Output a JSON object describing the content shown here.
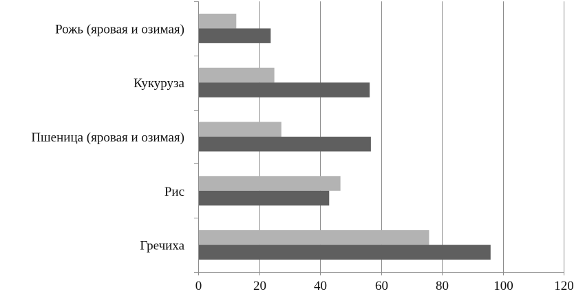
{
  "chart_data": {
    "type": "bar",
    "orientation": "horizontal",
    "categories": [
      "Рожь (яровая и озимая)",
      "Кукуруза",
      "Пшеница (яровая и озимая)",
      "Рис",
      "Гречиха"
    ],
    "series": [
      {
        "values": [
          12.5,
          25,
          27.3,
          46.7,
          75.8
        ],
        "color": "#b3b3b3"
      },
      {
        "values": [
          23.8,
          56.3,
          56.7,
          43,
          96
        ],
        "color": "#5f5f5f"
      }
    ],
    "xlim": [
      0,
      120
    ],
    "x_ticks": [
      "0",
      "20",
      "40",
      "60",
      "80",
      "100",
      "120"
    ],
    "grid": "vertical",
    "legend": "none",
    "title": "",
    "xlabel": "",
    "ylabel": ""
  }
}
